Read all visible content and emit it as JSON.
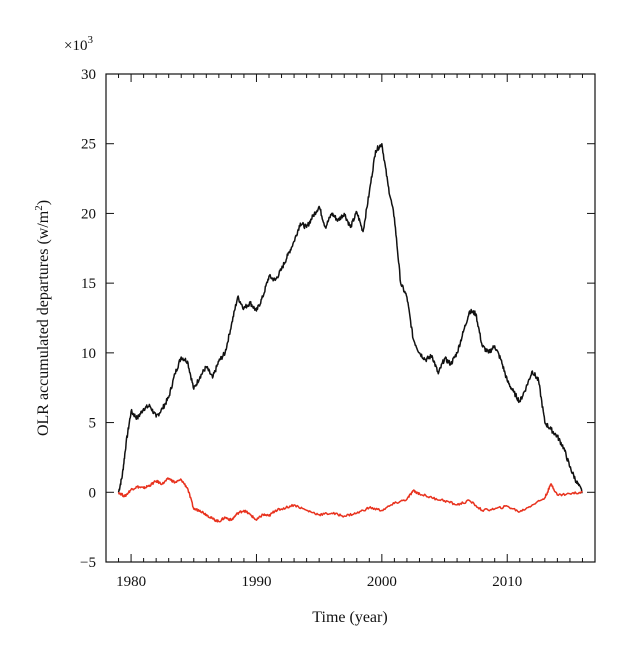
{
  "chart_data": {
    "type": "line",
    "title": "",
    "xlabel": "Time (year)",
    "ylabel_main": "OLR accumulated departures (w/m",
    "ylabel_sup": "2",
    "ylabel_close": ")",
    "y_multiplier_base": "×10",
    "y_multiplier_exp": "3",
    "xlim": [
      1978,
      2017
    ],
    "ylim": [
      -5,
      30
    ],
    "x_ticks": [
      1980,
      1990,
      2000,
      2010
    ],
    "y_ticks": [
      -5,
      0,
      5,
      10,
      15,
      20,
      25,
      30
    ],
    "grid": false,
    "legend": "none",
    "series": [
      {
        "color": "#111111",
        "x": [
          1979.0,
          1979.3,
          1979.6,
          1980.0,
          1980.5,
          1981.0,
          1981.5,
          1982.0,
          1982.5,
          1983.0,
          1983.5,
          1984.0,
          1984.5,
          1985.0,
          1985.5,
          1986.0,
          1986.5,
          1987.0,
          1987.5,
          1988.0,
          1988.5,
          1989.0,
          1989.5,
          1990.0,
          1990.5,
          1991.0,
          1991.5,
          1992.0,
          1992.5,
          1993.0,
          1993.5,
          1994.0,
          1994.5,
          1995.0,
          1995.5,
          1996.0,
          1996.5,
          1997.0,
          1997.5,
          1998.0,
          1998.5,
          1999.0,
          1999.5,
          2000.0,
          2000.5,
          2001.0,
          2001.5,
          2002.0,
          2002.5,
          2003.0,
          2003.5,
          2004.0,
          2004.5,
          2005.0,
          2005.5,
          2006.0,
          2006.5,
          2007.0,
          2007.5,
          2008.0,
          2008.5,
          2009.0,
          2009.5,
          2010.0,
          2010.5,
          2011.0,
          2011.5,
          2012.0,
          2012.5,
          2013.0,
          2013.5,
          2014.0,
          2014.5,
          2015.0,
          2015.5,
          2016.0
        ],
        "y": [
          0.0,
          1.2,
          3.5,
          5.8,
          5.3,
          6.0,
          6.2,
          5.4,
          6.0,
          6.8,
          8.5,
          9.7,
          9.4,
          7.4,
          8.3,
          9.0,
          8.2,
          9.4,
          10.0,
          12.0,
          14.0,
          13.2,
          13.6,
          13.0,
          14.0,
          15.5,
          15.2,
          16.0,
          17.0,
          18.0,
          19.3,
          19.0,
          19.8,
          20.5,
          19.0,
          20.0,
          19.5,
          20.0,
          19.0,
          20.1,
          18.7,
          21.5,
          24.5,
          25.0,
          22.0,
          19.7,
          15.0,
          14.0,
          11.0,
          10.0,
          9.5,
          9.8,
          8.5,
          9.6,
          9.2,
          10.0,
          11.5,
          13.0,
          12.8,
          10.5,
          10.0,
          10.5,
          9.5,
          8.0,
          7.2,
          6.5,
          7.5,
          8.7,
          8.0,
          5.0,
          4.5,
          4.0,
          3.2,
          1.8,
          0.8,
          0.0
        ]
      },
      {
        "color": "#e8321e",
        "x": [
          1979.0,
          1979.5,
          1980.0,
          1980.5,
          1981.0,
          1981.5,
          1982.0,
          1982.5,
          1983.0,
          1983.5,
          1984.0,
          1984.5,
          1985.0,
          1985.5,
          1986.0,
          1986.5,
          1987.0,
          1987.5,
          1988.0,
          1988.5,
          1989.0,
          1989.5,
          1990.0,
          1990.5,
          1991.0,
          1991.5,
          1992.0,
          1993.0,
          1994.0,
          1995.0,
          1996.0,
          1997.0,
          1998.0,
          1999.0,
          2000.0,
          2001.0,
          2002.0,
          2002.5,
          2003.0,
          2004.0,
          2005.0,
          2006.0,
          2007.0,
          2008.0,
          2009.0,
          2010.0,
          2011.0,
          2012.0,
          2013.0,
          2013.5,
          2014.0,
          2015.0,
          2016.0
        ],
        "y": [
          0.0,
          -0.3,
          0.2,
          0.4,
          0.3,
          0.5,
          0.8,
          0.6,
          1.0,
          0.7,
          0.9,
          0.3,
          -1.2,
          -1.3,
          -1.6,
          -1.9,
          -2.1,
          -1.8,
          -2.0,
          -1.5,
          -1.3,
          -1.6,
          -2.0,
          -1.6,
          -1.7,
          -1.3,
          -1.2,
          -0.9,
          -1.3,
          -1.6,
          -1.5,
          -1.7,
          -1.5,
          -1.1,
          -1.3,
          -0.8,
          -0.5,
          0.1,
          -0.1,
          -0.4,
          -0.6,
          -0.9,
          -0.6,
          -1.3,
          -1.2,
          -1.0,
          -1.4,
          -0.9,
          -0.4,
          0.6,
          -0.2,
          -0.1,
          0.0
        ]
      }
    ]
  }
}
